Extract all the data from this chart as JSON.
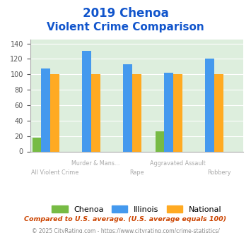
{
  "title_line1": "2019 Chenoa",
  "title_line2": "Violent Crime Comparison",
  "categories": [
    "All Violent Crime",
    "Murder & Mans...",
    "Rape",
    "Aggravated Assault",
    "Robbery"
  ],
  "chenoa": [
    18,
    0,
    0,
    26,
    0
  ],
  "illinois": [
    108,
    130,
    113,
    102,
    120
  ],
  "national": [
    100,
    100,
    100,
    100,
    100
  ],
  "colors": {
    "chenoa": "#77bb44",
    "illinois": "#4499ee",
    "national": "#ffaa22"
  },
  "ylim": [
    0,
    145
  ],
  "yticks": [
    0,
    20,
    40,
    60,
    80,
    100,
    120,
    140
  ],
  "footnote1": "Compared to U.S. average. (U.S. average equals 100)",
  "footnote2": "© 2025 CityRating.com - https://www.cityrating.com/crime-statistics/",
  "bg_color": "#ddeedd",
  "title_color": "#1155cc",
  "footnote1_color": "#cc4400",
  "footnote2_color": "#888888",
  "label_color": "#aaaaaa",
  "x_labels_row1": [
    "",
    "Murder & Mans...",
    "",
    "Aggravated Assault",
    ""
  ],
  "x_labels_row2": [
    "All Violent Crime",
    "",
    "Rape",
    "",
    "Robbery"
  ]
}
